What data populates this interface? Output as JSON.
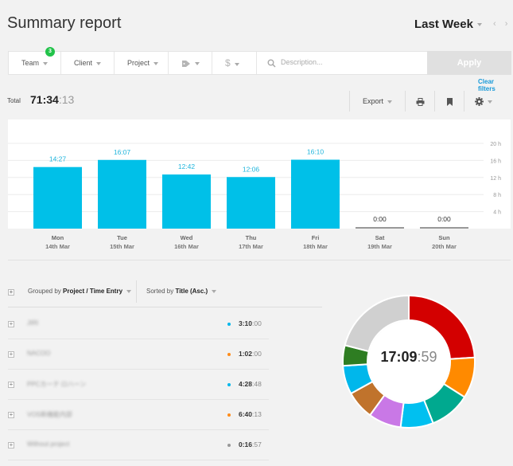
{
  "header": {
    "title": "Summary report",
    "period": "Last Week",
    "nav_arrows": "‹ ›"
  },
  "filters": {
    "team_label": "Team",
    "team_count": "3",
    "client_label": "Client",
    "project_label": "Project",
    "tag_icon": "tag-icon",
    "billable_icon": "dollar-icon",
    "description_placeholder": "Description...",
    "apply_label": "Apply",
    "clear_label": "Clear filters"
  },
  "total": {
    "label": "Total",
    "hm": "71:34",
    "sec": ":13"
  },
  "toolbar": {
    "export_label": "Export",
    "print_icon": "printer-icon",
    "bookmark_icon": "bookmark-icon",
    "settings_icon": "gear-icon"
  },
  "chart_data": {
    "type": "bar",
    "categories": [
      "Mon",
      "Tue",
      "Wed",
      "Thu",
      "Fri",
      "Sat",
      "Sun"
    ],
    "dates": [
      "14th Mar",
      "15th Mar",
      "16th Mar",
      "17th Mar",
      "18th Mar",
      "19th Mar",
      "20th Mar"
    ],
    "value_labels": [
      "14:27",
      "16:07",
      "12:42",
      "12:06",
      "16:10",
      "0:00",
      "0:00"
    ],
    "values": [
      14.45,
      16.12,
      12.7,
      12.1,
      16.17,
      0,
      0
    ],
    "ylim": [
      0,
      20
    ],
    "yticks": [
      "20 h",
      "16 h",
      "12 h",
      "8 h",
      "4 h"
    ],
    "ytick_values": [
      20,
      16,
      12,
      8,
      4
    ],
    "color": "#00c0e8",
    "zero_color": "#999999",
    "grid": true
  },
  "grouping": {
    "grouped_prefix": "Grouped by ",
    "grouped_value": "Project / Time Entry",
    "sorted_prefix": "Sorted by ",
    "sorted_value": "Title (Asc.)"
  },
  "entries": [
    {
      "title": "JIRI",
      "color": "#00b7eb",
      "hm": "3:10",
      "sec": ":00"
    },
    {
      "title": "NACOO",
      "color": "#ff8c1a",
      "hm": "1:02",
      "sec": ":00"
    },
    {
      "title": "PPCカーテ ロハーン",
      "color": "#00b7eb",
      "hm": "4:28",
      "sec": ":48"
    },
    {
      "title": "VOS新機能内部",
      "color": "#ff8c1a",
      "hm": "6:40",
      "sec": ":13"
    },
    {
      "title": "Without project",
      "color": "#999999",
      "hm": "0:16",
      "sec": ":57"
    }
  ],
  "donut": {
    "hm": "17:09",
    "sec": ":59",
    "slices": [
      {
        "value": 24,
        "color": "#d30000"
      },
      {
        "value": 10,
        "color": "#ff8a00"
      },
      {
        "value": 10,
        "color": "#00a98f"
      },
      {
        "value": 8,
        "color": "#00c0f0"
      },
      {
        "value": 8,
        "color": "#c978e6"
      },
      {
        "value": 7,
        "color": "#c0732c"
      },
      {
        "value": 7,
        "color": "#00b7eb"
      },
      {
        "value": 5,
        "color": "#2e7d22"
      },
      {
        "value": 21,
        "color": "#d0d0d0"
      }
    ]
  }
}
